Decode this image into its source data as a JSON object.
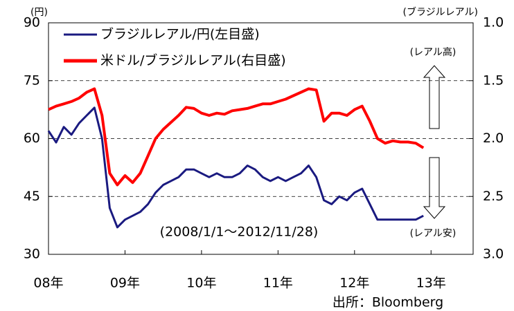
{
  "chart_data": {
    "type": "line",
    "y_unit_label": "(円)",
    "y2_unit_label": "(ブラジルレアル)",
    "annotations": [
      "(レアル高)",
      "(レアル安)",
      "(2008/1/1～2012/11/28)"
    ],
    "source": "出所：Bloomberg",
    "x": [
      2008.0,
      2008.1,
      2008.2,
      2008.3,
      2008.4,
      2008.5,
      2008.6,
      2008.7,
      2008.8,
      2008.9,
      2009.0,
      2009.1,
      2009.2,
      2009.3,
      2009.4,
      2009.5,
      2009.6,
      2009.7,
      2009.8,
      2009.9,
      2010.0,
      2010.1,
      2010.2,
      2010.3,
      2010.4,
      2010.5,
      2010.6,
      2010.7,
      2010.8,
      2010.9,
      2011.0,
      2011.1,
      2011.2,
      2011.3,
      2011.4,
      2011.5,
      2011.6,
      2011.7,
      2011.8,
      2011.9,
      2012.0,
      2012.1,
      2012.2,
      2012.3,
      2012.4,
      2012.5,
      2012.6,
      2012.7,
      2012.8,
      2012.9
    ],
    "xlim": [
      2008,
      2013.55
    ],
    "xticks": [
      {
        "value": 2008,
        "label": "08年"
      },
      {
        "value": 2009,
        "label": "09年"
      },
      {
        "value": 2010,
        "label": "10年"
      },
      {
        "value": 2011,
        "label": "11年"
      },
      {
        "value": 2012,
        "label": "12年"
      },
      {
        "value": 2013,
        "label": "13年"
      }
    ],
    "ylim": [
      30,
      90
    ],
    "yticks": [
      30,
      45,
      60,
      75,
      90
    ],
    "y2lim": [
      3,
      1
    ],
    "y2ticks": [
      {
        "value": 1,
        "label": "1.0"
      },
      {
        "value": 1.5,
        "label": "1.5"
      },
      {
        "value": 2,
        "label": "2.0"
      },
      {
        "value": 2.5,
        "label": "2.5"
      },
      {
        "value": 3,
        "label": "3.0"
      }
    ],
    "grid": true,
    "series": [
      {
        "name": "ブラジルレアル/円(左目盛)",
        "color": "#1a1a80",
        "values": [
          62,
          59,
          63,
          61,
          64,
          66,
          68,
          60,
          42,
          37,
          39,
          40,
          41,
          43,
          46,
          48,
          49,
          50,
          52,
          52,
          51,
          50,
          51,
          50,
          50,
          51,
          53,
          52,
          50,
          49,
          50,
          49,
          50,
          51,
          53,
          50,
          44,
          43,
          45,
          44,
          46,
          47,
          43,
          39,
          39,
          39,
          39,
          39,
          39,
          40
        ]
      },
      {
        "name": "米ドル/ブラジルレアル(右目盛)",
        "color": "#ff0000",
        "axis": "y2",
        "values": [
          1.75,
          1.72,
          1.7,
          1.68,
          1.65,
          1.6,
          1.57,
          1.8,
          2.3,
          2.4,
          2.32,
          2.38,
          2.3,
          2.15,
          2.0,
          1.92,
          1.86,
          1.8,
          1.73,
          1.74,
          1.78,
          1.8,
          1.78,
          1.79,
          1.76,
          1.75,
          1.74,
          1.72,
          1.7,
          1.7,
          1.68,
          1.66,
          1.63,
          1.6,
          1.57,
          1.58,
          1.85,
          1.78,
          1.78,
          1.8,
          1.75,
          1.72,
          1.85,
          2.0,
          2.04,
          2.02,
          2.03,
          2.03,
          2.04,
          2.08
        ]
      }
    ]
  }
}
